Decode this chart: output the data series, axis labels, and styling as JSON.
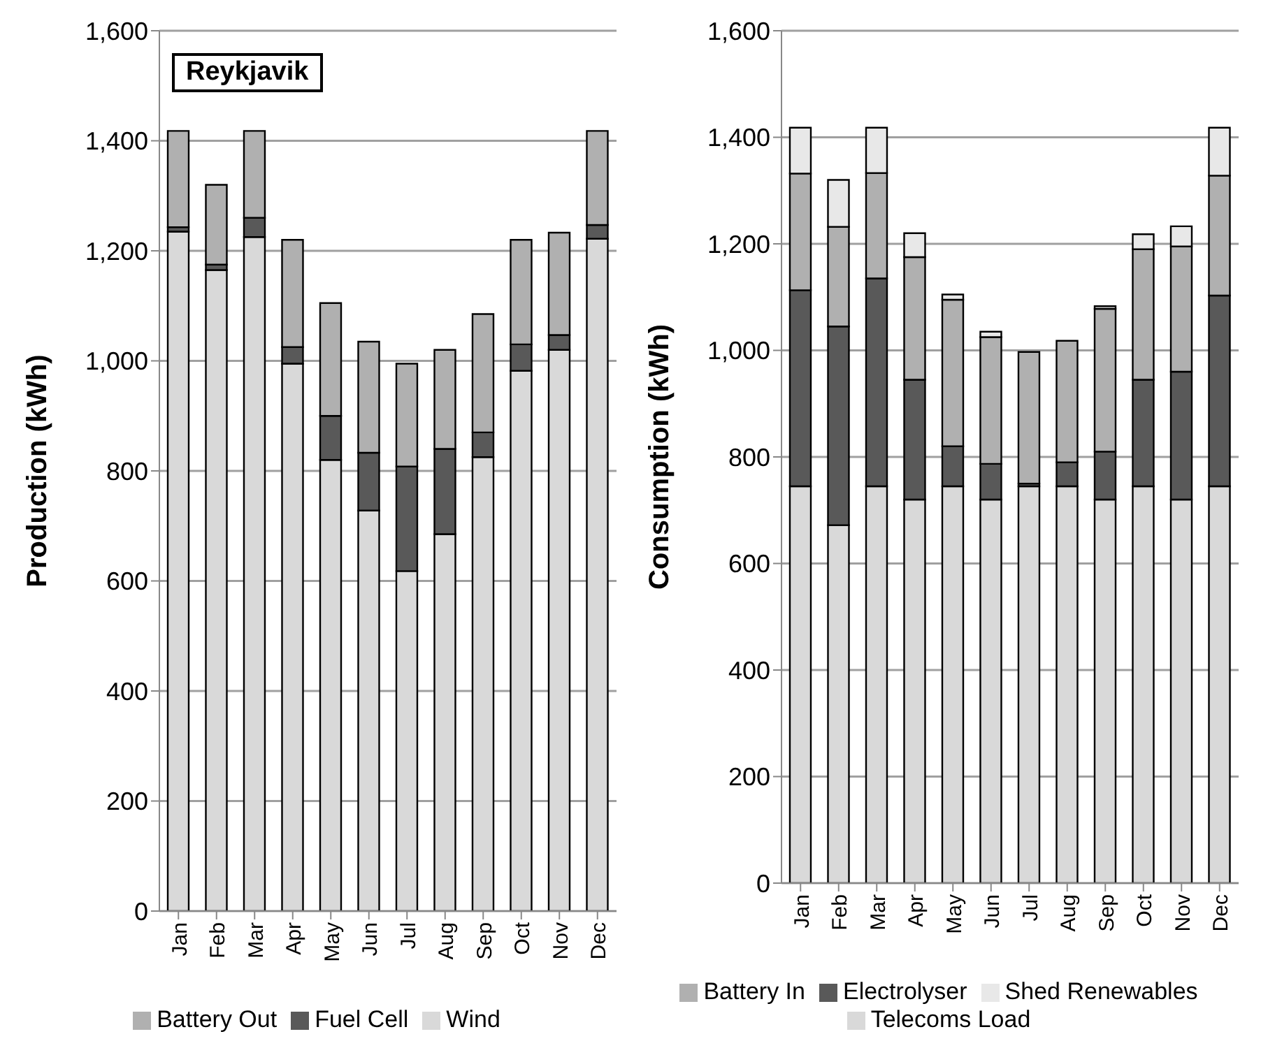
{
  "chart_data": [
    {
      "type": "bar",
      "stacked": true,
      "ylabel": "Production (kWh)",
      "annotations": [
        "Reykjavik"
      ],
      "categories": [
        "Jan",
        "Feb",
        "Mar",
        "Apr",
        "May",
        "Jun",
        "Jul",
        "Aug",
        "Sep",
        "Oct",
        "Nov",
        "Dec"
      ],
      "series": [
        {
          "name": "Wind",
          "color": "#d9d9d9",
          "values": [
            1235,
            1165,
            1225,
            995,
            820,
            728,
            618,
            685,
            825,
            982,
            1020,
            1222
          ]
        },
        {
          "name": "Fuel Cell",
          "color": "#595959",
          "values": [
            8,
            10,
            35,
            30,
            80,
            105,
            190,
            155,
            45,
            48,
            27,
            25
          ]
        },
        {
          "name": "Battery Out",
          "color": "#b0b0b0",
          "values": [
            175,
            145,
            158,
            195,
            205,
            202,
            187,
            180,
            215,
            190,
            186,
            171
          ]
        }
      ],
      "ylim": [
        0,
        1600
      ],
      "yticks": [
        {
          "value": 0,
          "label": "0"
        },
        {
          "value": 200,
          "label": "200"
        },
        {
          "value": 400,
          "label": "400"
        },
        {
          "value": 600,
          "label": "600"
        },
        {
          "value": 800,
          "label": "800"
        },
        {
          "value": 1000,
          "label": "1,000"
        },
        {
          "value": 1200,
          "label": "1,200"
        },
        {
          "value": 1400,
          "label": "1,400"
        },
        {
          "value": 1600,
          "label": "1,600"
        }
      ],
      "grid": "y",
      "legend": "bottom"
    },
    {
      "type": "bar",
      "stacked": true,
      "ylabel": "Consumption (kWh)",
      "categories": [
        "Jan",
        "Feb",
        "Mar",
        "Apr",
        "May",
        "Jun",
        "Jul",
        "Aug",
        "Sep",
        "Oct",
        "Nov",
        "Dec"
      ],
      "series": [
        {
          "name": "Telecoms Load",
          "color": "#d9d9d9",
          "values": [
            745,
            672,
            745,
            720,
            745,
            720,
            745,
            745,
            720,
            745,
            720,
            745
          ]
        },
        {
          "name": "Electrolyser",
          "color": "#595959",
          "values": [
            368,
            373,
            390,
            225,
            75,
            67,
            5,
            45,
            90,
            200,
            240,
            358
          ]
        },
        {
          "name": "Battery In",
          "color": "#b0b0b0",
          "values": [
            219,
            187,
            198,
            230,
            275,
            238,
            247,
            228,
            268,
            245,
            235,
            225
          ]
        },
        {
          "name": "Shed Renewables",
          "color": "#e8e8e8",
          "values": [
            86,
            88,
            85,
            45,
            10,
            10,
            0,
            null,
            5,
            28,
            38,
            90
          ]
        }
      ],
      "ylim": [
        0,
        1600
      ],
      "yticks": [
        {
          "value": 0,
          "label": "0"
        },
        {
          "value": 200,
          "label": "200"
        },
        {
          "value": 400,
          "label": "400"
        },
        {
          "value": 600,
          "label": "600"
        },
        {
          "value": 800,
          "label": "800"
        },
        {
          "value": 1000,
          "label": "1,000"
        },
        {
          "value": 1200,
          "label": "1,200"
        },
        {
          "value": 1400,
          "label": "1,400"
        },
        {
          "value": 1600,
          "label": "1,600"
        }
      ],
      "grid": "y",
      "legend": "bottom"
    }
  ]
}
